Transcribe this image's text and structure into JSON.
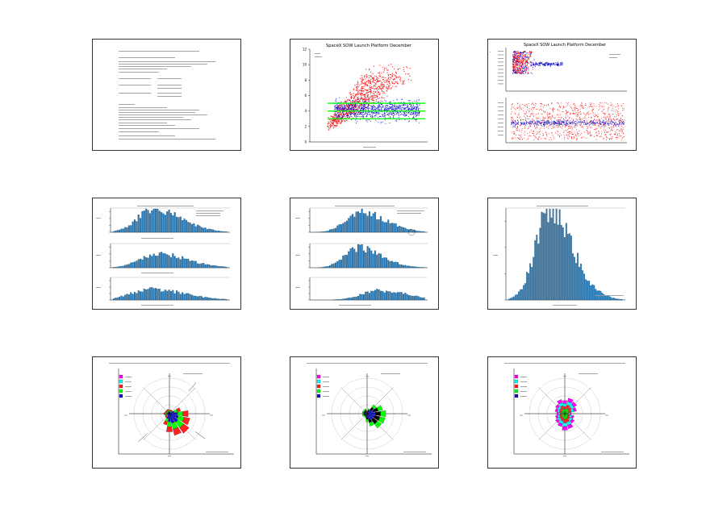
{
  "colors": {
    "red": "#ff2020",
    "blue": "#1010cc",
    "green": "#00ff00",
    "bar": "#2a7ab5",
    "magenta": "#ff00ff",
    "cyan": "#00ffff",
    "black": "#000000"
  },
  "slides": [
    {
      "kind": "text"
    },
    {
      "kind": "scatter",
      "title": "SpaceX SOW Launch Platform December",
      "ylim": [
        0,
        12
      ],
      "yticks": [
        "0",
        "2",
        "4",
        "6",
        "8",
        "10",
        "12"
      ],
      "hlines": [
        3,
        4,
        5
      ]
    },
    {
      "kind": "scatter-pair",
      "title": "SpaceX SOW Launch Platform December"
    },
    {
      "kind": "hist3"
    },
    {
      "kind": "hist3"
    },
    {
      "kind": "hist1"
    },
    {
      "kind": "rose",
      "variant": "green"
    },
    {
      "kind": "rose",
      "variant": "blue"
    },
    {
      "kind": "rose",
      "variant": "multi"
    }
  ],
  "chart_data": [
    {
      "type": "scatter",
      "title": "SpaceX SOW Launch Platform December",
      "ylim": [
        0,
        12
      ],
      "reference_lines_y": [
        3,
        4,
        5
      ],
      "series": [
        {
          "color": "#ff2020"
        },
        {
          "color": "#1010cc"
        }
      ]
    },
    {
      "type": "scatter",
      "title": "SpaceX SOW Launch Platform December",
      "series": [
        {
          "color": "#ff2020"
        },
        {
          "color": "#1010cc"
        }
      ]
    },
    {
      "type": "bar",
      "panels": 3
    },
    {
      "type": "bar",
      "panels": 3
    },
    {
      "type": "bar",
      "panels": 1
    },
    {
      "type": "rose",
      "sectors": 16
    },
    {
      "type": "rose",
      "sectors": 16
    },
    {
      "type": "rose",
      "sectors": 16
    }
  ]
}
